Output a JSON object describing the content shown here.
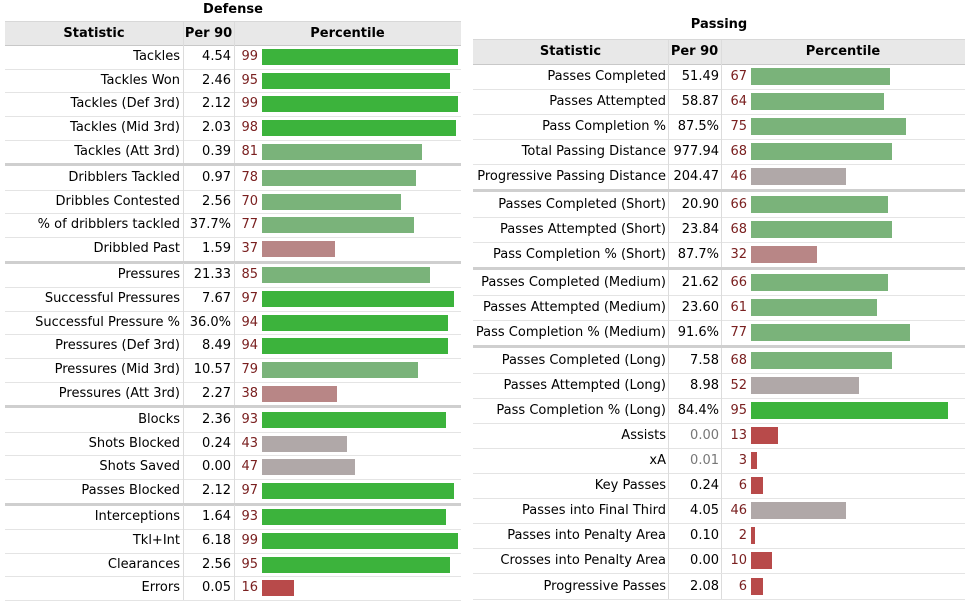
{
  "chart_data": [
    {
      "type": "table",
      "title": "Defense",
      "columns": [
        "Statistic",
        "Per 90",
        "Percentile"
      ],
      "groups": [
        [
          {
            "stat": "Tackles",
            "per90": "4.54",
            "pct": 99
          },
          {
            "stat": "Tackles Won",
            "per90": "2.46",
            "pct": 95
          },
          {
            "stat": "Tackles (Def 3rd)",
            "per90": "2.12",
            "pct": 99
          },
          {
            "stat": "Tackles (Mid 3rd)",
            "per90": "2.03",
            "pct": 98
          },
          {
            "stat": "Tackles (Att 3rd)",
            "per90": "0.39",
            "pct": 81
          }
        ],
        [
          {
            "stat": "Dribblers Tackled",
            "per90": "0.97",
            "pct": 78
          },
          {
            "stat": "Dribbles Contested",
            "per90": "2.56",
            "pct": 70
          },
          {
            "stat": "% of dribblers tackled",
            "per90": "37.7%",
            "pct": 77
          },
          {
            "stat": "Dribbled Past",
            "per90": "1.59",
            "pct": 37
          }
        ],
        [
          {
            "stat": "Pressures",
            "per90": "21.33",
            "pct": 85
          },
          {
            "stat": "Successful Pressures",
            "per90": "7.67",
            "pct": 97
          },
          {
            "stat": "Successful Pressure %",
            "per90": "36.0%",
            "pct": 94
          },
          {
            "stat": "Pressures (Def 3rd)",
            "per90": "8.49",
            "pct": 94
          },
          {
            "stat": "Pressures (Mid 3rd)",
            "per90": "10.57",
            "pct": 79
          },
          {
            "stat": "Pressures (Att 3rd)",
            "per90": "2.27",
            "pct": 38
          }
        ],
        [
          {
            "stat": "Blocks",
            "per90": "2.36",
            "pct": 93
          },
          {
            "stat": "Shots Blocked",
            "per90": "0.24",
            "pct": 43
          },
          {
            "stat": "Shots Saved",
            "per90": "0.00",
            "pct": 47
          },
          {
            "stat": "Passes Blocked",
            "per90": "2.12",
            "pct": 97
          }
        ],
        [
          {
            "stat": "Interceptions",
            "per90": "1.64",
            "pct": 93
          },
          {
            "stat": "Tkl+Int",
            "per90": "6.18",
            "pct": 99
          },
          {
            "stat": "Clearances",
            "per90": "2.56",
            "pct": 95
          },
          {
            "stat": "Errors",
            "per90": "0.05",
            "pct": 16
          }
        ]
      ]
    },
    {
      "type": "table",
      "title": "Passing",
      "columns": [
        "Statistic",
        "Per 90",
        "Percentile"
      ],
      "groups": [
        [
          {
            "stat": "Passes Completed",
            "per90": "51.49",
            "pct": 67
          },
          {
            "stat": "Passes Attempted",
            "per90": "58.87",
            "pct": 64
          },
          {
            "stat": "Pass Completion %",
            "per90": "87.5%",
            "pct": 75
          },
          {
            "stat": "Total Passing Distance",
            "per90": "977.94",
            "pct": 68
          },
          {
            "stat": "Progressive Passing Distance",
            "per90": "204.47",
            "pct": 46
          }
        ],
        [
          {
            "stat": "Passes Completed (Short)",
            "per90": "20.90",
            "pct": 66
          },
          {
            "stat": "Passes Attempted (Short)",
            "per90": "23.84",
            "pct": 68
          },
          {
            "stat": "Pass Completion % (Short)",
            "per90": "87.7%",
            "pct": 32
          }
        ],
        [
          {
            "stat": "Passes Completed (Medium)",
            "per90": "21.62",
            "pct": 66
          },
          {
            "stat": "Passes Attempted (Medium)",
            "per90": "23.60",
            "pct": 61
          },
          {
            "stat": "Pass Completion % (Medium)",
            "per90": "91.6%",
            "pct": 77
          }
        ],
        [
          {
            "stat": "Passes Completed (Long)",
            "per90": "7.58",
            "pct": 68
          },
          {
            "stat": "Passes Attempted (Long)",
            "per90": "8.98",
            "pct": 52
          },
          {
            "stat": "Pass Completion % (Long)",
            "per90": "84.4%",
            "pct": 95
          },
          {
            "stat": "Assists",
            "per90": "0.00",
            "pct": 13,
            "dim": true
          },
          {
            "stat": "xA",
            "per90": "0.01",
            "pct": 3,
            "dim": true
          },
          {
            "stat": "Key Passes",
            "per90": "0.24",
            "pct": 6
          },
          {
            "stat": "Passes into Final Third",
            "per90": "4.05",
            "pct": 46
          },
          {
            "stat": "Passes into Penalty Area",
            "per90": "0.10",
            "pct": 2
          },
          {
            "stat": "Crosses into Penalty Area",
            "per90": "0.00",
            "pct": 10
          },
          {
            "stat": "Progressive Passes",
            "per90": "2.08",
            "pct": 6
          }
        ]
      ]
    }
  ]
}
